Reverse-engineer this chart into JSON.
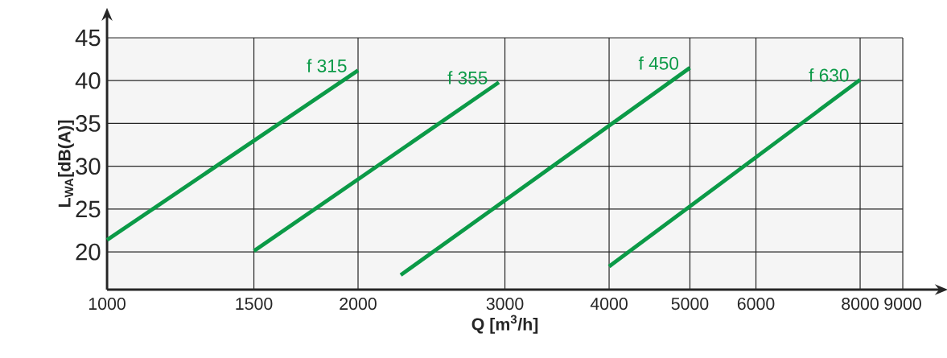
{
  "chart_data": {
    "type": "line",
    "xlabel": "Q [m$^{3}$/h]",
    "ylabel": "L$_{WA}$[dB(A)]",
    "log": "x",
    "grid": true,
    "xlim": [
      1000,
      9000
    ],
    "xticks": [
      1000,
      1500,
      2000,
      3000,
      4000,
      5000,
      6000,
      8000,
      9000
    ],
    "ylim": [
      15.6,
      45
    ],
    "yticks": [
      20,
      25,
      30,
      35,
      40,
      45
    ],
    "series": [
      {
        "name": "f 315",
        "color": "#0b9a47",
        "x": [
          1000,
          2000
        ],
        "values": [
          21.4,
          41.2
        ]
      },
      {
        "name": "f 355",
        "color": "#0b9a47",
        "x": [
          1500,
          2950
        ],
        "values": [
          20.1,
          39.8
        ]
      },
      {
        "name": "f 450",
        "color": "#0b9a47",
        "x": [
          2250,
          5000
        ],
        "values": [
          17.3,
          41.5
        ]
      },
      {
        "name": "f 630",
        "color": "#0b9a47",
        "x": [
          4000,
          8000
        ],
        "values": [
          18.3,
          40.1
        ]
      }
    ]
  }
}
